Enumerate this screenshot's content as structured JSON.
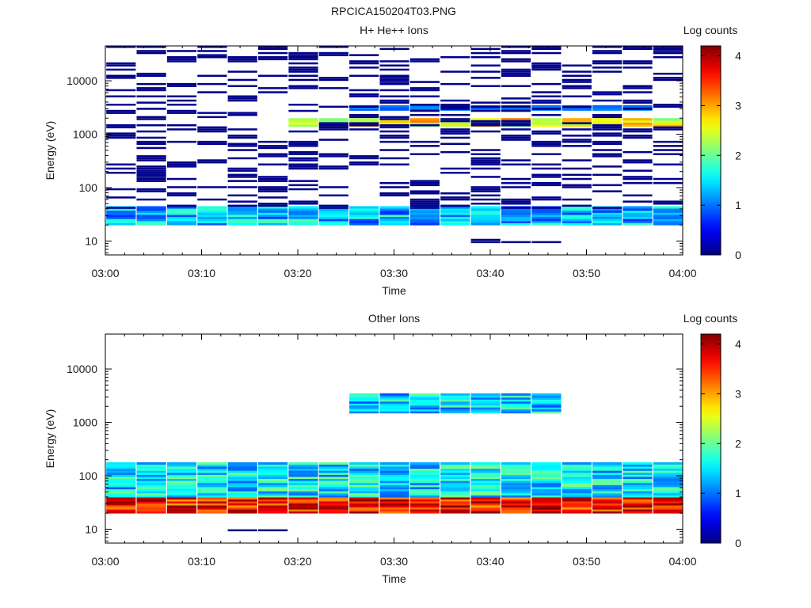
{
  "figure": {
    "title": "RPCICA150204T03.PNG"
  },
  "chart_data": [
    {
      "type": "heatmap",
      "title": "H+ He++ Ions",
      "xlabel": "Time",
      "ylabel": "Energy (eV)",
      "x_ticks": [
        "03:00",
        "03:10",
        "03:20",
        "03:30",
        "03:40",
        "03:50",
        "04:00"
      ],
      "y_ticks": [
        "10",
        "100",
        "1000",
        "10000"
      ],
      "y_scale": "log",
      "ylim": [
        5.5,
        45000
      ],
      "xlim": [
        "03:00",
        "04:00"
      ],
      "colorbar": {
        "label": "Log counts",
        "ticks": [
          "0",
          "1",
          "2",
          "3",
          "4"
        ],
        "range": [
          0,
          4.2
        ],
        "colormap": "jet"
      },
      "time_bins": [
        "03:02",
        "03:05",
        "03:08",
        "03:11",
        "03:14",
        "03:17",
        "03:20",
        "03:23",
        "03:26",
        "03:30",
        "03:33",
        "03:36",
        "03:39",
        "03:42",
        "03:45",
        "03:48",
        "03:51",
        "03:54",
        "03:57"
      ],
      "energy_bands": [
        {
          "energy_range_eV": [
            9,
            11
          ],
          "times": [
            "03:38",
            "03:47"
          ],
          "log_counts": 0.1
        },
        {
          "energy_range_eV": [
            20,
            45
          ],
          "times": [
            "03:02",
            "04:00"
          ],
          "log_counts": 1.3
        },
        {
          "energy_range_eV": [
            1400,
            2000
          ],
          "times": [
            "03:20",
            "04:00"
          ],
          "log_counts": 2.6
        },
        {
          "energy_range_eV": [
            2800,
            3500
          ],
          "times": [
            "03:25",
            "03:55"
          ],
          "log_counts": 1.0
        },
        {
          "energy_range_eV": [
            40,
            45000
          ],
          "times": [
            "03:02",
            "04:00"
          ],
          "log_counts": 0.15
        }
      ]
    },
    {
      "type": "heatmap",
      "title": "Other Ions",
      "xlabel": "Time",
      "ylabel": "Energy (eV)",
      "x_ticks": [
        "03:00",
        "03:10",
        "03:20",
        "03:30",
        "03:40",
        "03:50",
        "04:00"
      ],
      "y_ticks": [
        "10",
        "100",
        "1000",
        "10000"
      ],
      "y_scale": "log",
      "ylim": [
        5.5,
        45000
      ],
      "xlim": [
        "03:00",
        "04:00"
      ],
      "colorbar": {
        "label": "Log counts",
        "ticks": [
          "0",
          "1",
          "2",
          "3",
          "4"
        ],
        "range": [
          0,
          4.2
        ],
        "colormap": "jet"
      },
      "time_bins": [
        "03:02",
        "03:05",
        "03:08",
        "03:11",
        "03:14",
        "03:17",
        "03:20",
        "03:23",
        "03:26",
        "03:30",
        "03:33",
        "03:36",
        "03:39",
        "03:42",
        "03:45",
        "03:48",
        "03:51",
        "03:54",
        "03:57"
      ],
      "energy_bands": [
        {
          "energy_range_eV": [
            9,
            11
          ],
          "times": [
            "03:15",
            "03:18"
          ],
          "log_counts": 0.1
        },
        {
          "energy_range_eV": [
            20,
            40
          ],
          "times": [
            "03:02",
            "04:00"
          ],
          "log_counts": 3.6
        },
        {
          "energy_range_eV": [
            40,
            180
          ],
          "times": [
            "03:02",
            "04:00"
          ],
          "log_counts": 1.5
        },
        {
          "energy_range_eV": [
            1500,
            3500
          ],
          "times": [
            "03:25",
            "03:45"
          ],
          "log_counts": 1.4
        }
      ]
    }
  ]
}
